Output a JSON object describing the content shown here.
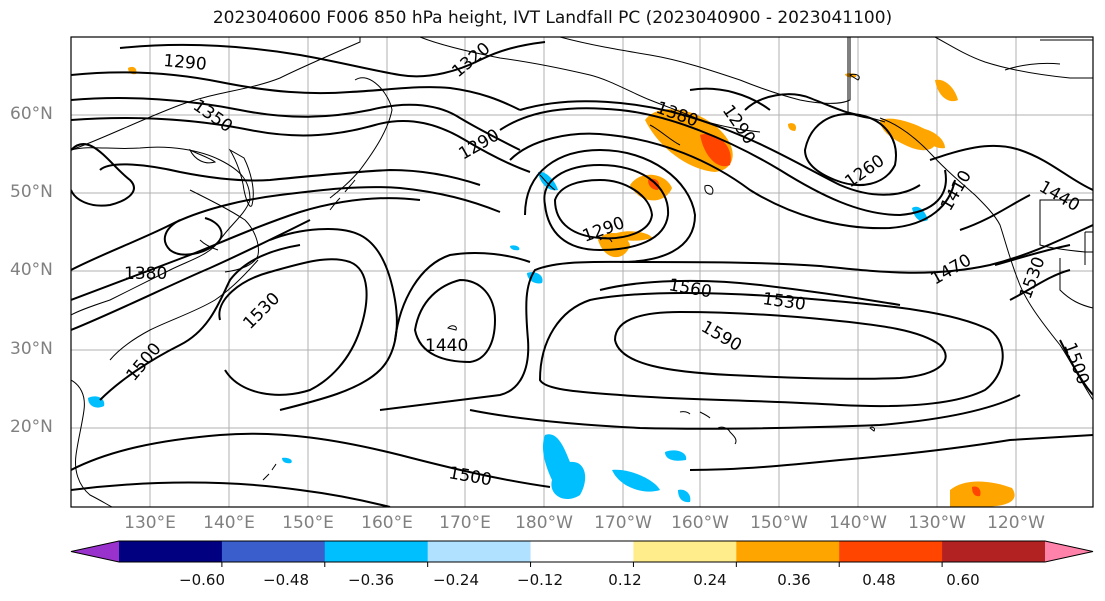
{
  "title": "2023040600 F006 850 hPa height, IVT Landfall PC (2023040900 - 2023041100)",
  "lat_labels": [
    "60°N",
    "50°N",
    "40°N",
    "30°N",
    "20°N"
  ],
  "lon_labels": [
    "130°E",
    "140°E",
    "150°E",
    "160°E",
    "170°E",
    "180°W",
    "170°W",
    "160°W",
    "150°W",
    "140°W",
    "130°W",
    "120°W"
  ],
  "contour_labels": [
    "1290",
    "1320",
    "1350",
    "1290",
    "1380",
    "1290",
    "1260",
    "1410",
    "1440",
    "1380",
    "1290",
    "1530",
    "1500",
    "1440",
    "1560",
    "1530",
    "1590",
    "1470",
    "1530",
    "1500",
    "1500"
  ],
  "colorbar": {
    "ticks": [
      "−0.60",
      "−0.48",
      "−0.36",
      "−0.24",
      "−0.12",
      "0.12",
      "0.24",
      "0.36",
      "0.48",
      "0.60"
    ],
    "colors": [
      "#9932cc",
      "#000080",
      "#3a5fcd",
      "#00bfff",
      "#b0e2ff",
      "#ffffff",
      "#ffec8b",
      "#ffa500",
      "#ff4500",
      "#b22222",
      "#ff82ab"
    ]
  }
}
